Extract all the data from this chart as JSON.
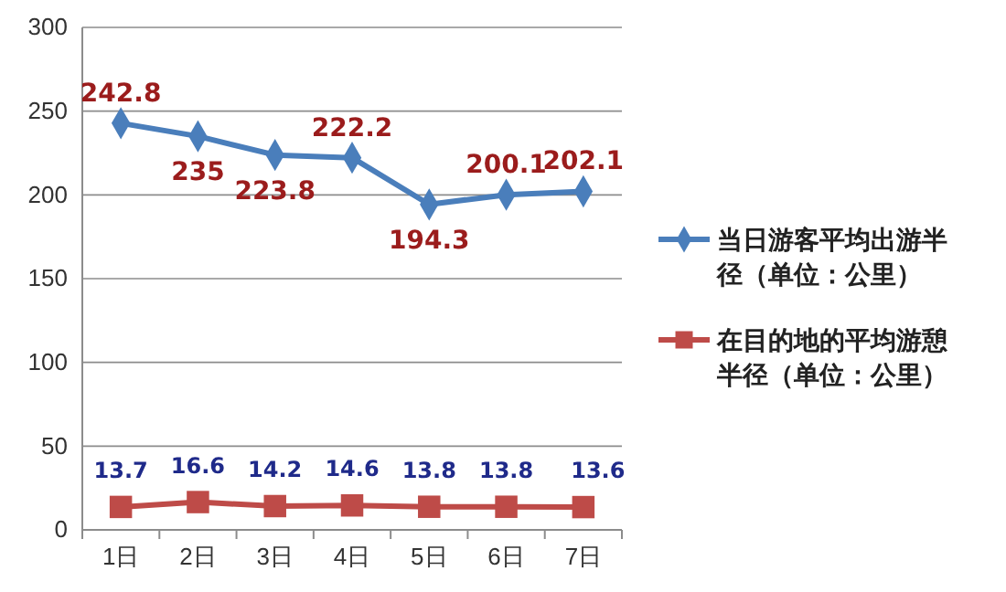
{
  "chart_data": {
    "type": "line",
    "categories": [
      "1日",
      "2日",
      "3日",
      "4日",
      "5日",
      "6日",
      "7日"
    ],
    "series": [
      {
        "name": "当日游客平均出游半径（单位：公里）",
        "color": "#4a7ebb",
        "marker": "diamond",
        "values": [
          242.8,
          235,
          223.8,
          222.2,
          194.3,
          200.1,
          202.1
        ]
      },
      {
        "name": "在目的地的平均游憩半径（单位：公里）",
        "color": "#be4b48",
        "marker": "square",
        "values": [
          13.7,
          16.6,
          14.2,
          14.6,
          13.8,
          13.8,
          13.6
        ]
      }
    ],
    "ylim": [
      0,
      300
    ],
    "yticks": [
      0,
      50,
      100,
      150,
      200,
      250,
      300
    ],
    "grid": "y",
    "legend": "right",
    "data_labels": true
  }
}
